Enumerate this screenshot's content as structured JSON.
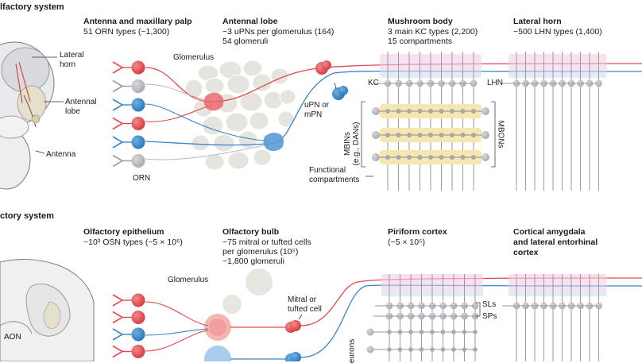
{
  "insect": {
    "section_title": "lfactory system",
    "brain_labels": {
      "lateral_horn": "Lateral\nhorn",
      "antennal_lobe": "Antennal\nlobe",
      "antenna": "Antenna"
    },
    "antenna_col": {
      "title": "Antenna and maxillary palp",
      "sub": "51 ORN types (~1,300)",
      "orn_label": "ORN"
    },
    "lobe_col": {
      "title": "Antennal lobe",
      "sub1": "~3 uPNs per glomerulus (164)",
      "sub2": "54 glomeruli",
      "glomerulus_label": "Glomerulus",
      "upn_label": "uPN or\nmPN"
    },
    "mb_col": {
      "title": "Mushroom body",
      "sub1": "3 main KC types (2,200)",
      "sub2": "15 compartments",
      "kc_label": "KC",
      "mbin_label": "MBINs\n(e.g., DANs)",
      "mbon_label": "MBONs",
      "compartments_label": "Functional\ncompartments"
    },
    "lh_col": {
      "title": "Lateral horn",
      "sub": "~500 LHN types (1,400)",
      "lhn_label": "LHN"
    }
  },
  "mammal": {
    "section_title": "ctory system",
    "brain_labels": {
      "aon": "AON"
    },
    "epithelium_col": {
      "title": "Olfactory epithelium",
      "sub": "~10³ OSN types (~5 × 10⁶)"
    },
    "bulb_col": {
      "title": "Olfactory bulb",
      "sub1": "~75 mitral or tufted cells",
      "sub2": "per glomerulus (10⁵)",
      "sub3": "~1,800 glomeruli",
      "glomerulus_label": "Glomerulus",
      "mitral_label": "Mitral or\ntufted cell"
    },
    "piriform_col": {
      "title": "Piriform cortex",
      "sub": "(~5 × 10⁵)",
      "sl_label": "SLs",
      "sp_label": "SPs",
      "neurons_label": "eurons"
    },
    "amygdala_col": {
      "title1": "Cortical amygdala",
      "title2": "and lateral entorhinal",
      "title3": "cortex"
    }
  },
  "colors": {
    "red": "#e24a4f",
    "blue": "#3a86c8",
    "grey": "#b8b8be",
    "yellow": "#f6e6b0",
    "pink": "#f1cfe0",
    "lightblue": "#cfe3f4",
    "glom": "#e6e4de"
  }
}
